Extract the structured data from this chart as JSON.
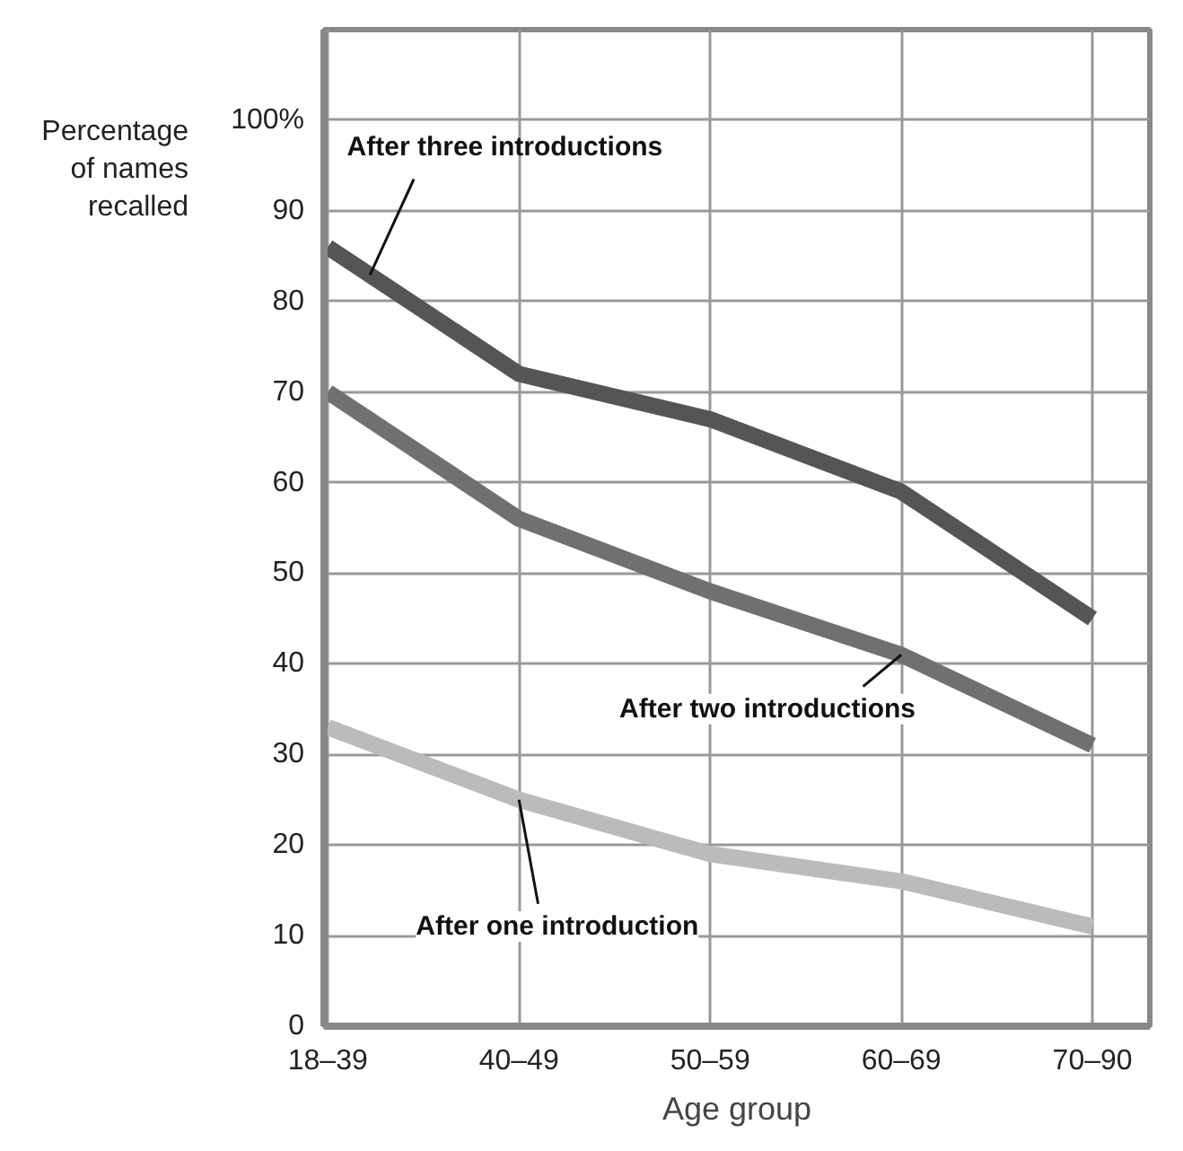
{
  "chart_data": {
    "type": "line",
    "ylabel": "Percentage\nof names\nrecalled",
    "xlabel": "Age group",
    "categories": [
      "18–39",
      "40–49",
      "50–59",
      "60–69",
      "70–90"
    ],
    "ylim": [
      0,
      110
    ],
    "yticks": [
      0,
      10,
      20,
      30,
      40,
      50,
      60,
      70,
      80,
      90,
      {
        "value": 100,
        "label": "100%"
      }
    ],
    "grid": true,
    "legend": false,
    "marker": "none",
    "line_style": "solid",
    "series": [
      {
        "name": "After three introductions",
        "color": "#555555",
        "values": [
          86,
          72,
          67,
          59,
          45
        ]
      },
      {
        "name": "After two introductions",
        "color": "#707070",
        "values": [
          70,
          56,
          48,
          41,
          31
        ]
      },
      {
        "name": "After one introduction",
        "color": "#bbbbbb",
        "values": [
          33,
          25,
          19,
          16,
          11
        ]
      }
    ]
  }
}
